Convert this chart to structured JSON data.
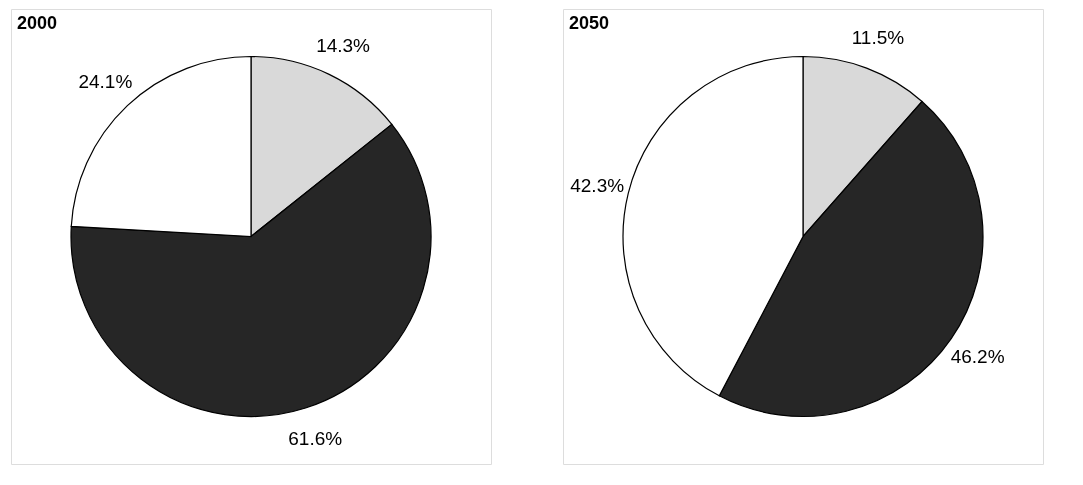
{
  "chart_data": [
    {
      "type": "pie",
      "title": "2000",
      "categories": [
        null,
        null,
        null
      ],
      "values": [
        14.3,
        61.6,
        24.1
      ],
      "colors": [
        "#d9d9d9",
        "#262626",
        "#ffffff"
      ],
      "value_labels": [
        "14.3%",
        "61.6%",
        "24.1%"
      ]
    },
    {
      "type": "pie",
      "title": "2050",
      "categories": [
        null,
        null,
        null
      ],
      "values": [
        11.5,
        46.2,
        42.3
      ],
      "colors": [
        "#d9d9d9",
        "#262626",
        "#ffffff"
      ],
      "value_labels": [
        "11.5%",
        "46.2%",
        "42.3%"
      ]
    }
  ]
}
